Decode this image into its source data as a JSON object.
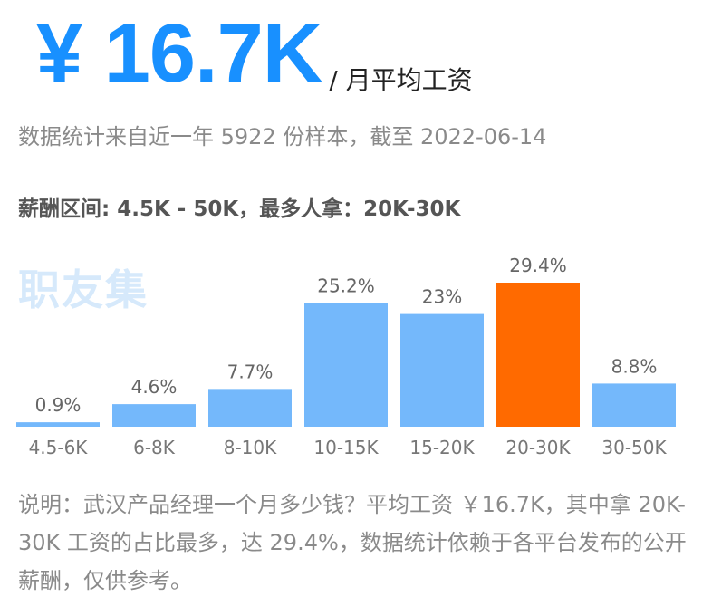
{
  "header": {
    "avg_salary": "¥ 16.7K",
    "unit": "/ 月平均工资",
    "subtitle": "数据统计来自近一年 5922 份样本，截至 2022-06-14",
    "salary_range": "薪酬区间: 4.5K - 50K，最多人拿：20K-30K"
  },
  "watermark": "职友集",
  "colors": {
    "accent": "#1890ff",
    "bar": "#74b8fb",
    "highlight": "#ff6a00"
  },
  "chart_data": {
    "type": "bar",
    "categories": [
      "4.5-6K",
      "6-8K",
      "8-10K",
      "10-15K",
      "15-20K",
      "20-30K",
      "30-50K"
    ],
    "values": [
      0.9,
      4.6,
      7.7,
      25.2,
      23,
      29.4,
      8.8
    ],
    "data_labels": [
      "0.9%",
      "4.6%",
      "7.7%",
      "25.2%",
      "23%",
      "29.4%",
      "8.8%"
    ],
    "highlight_category": "20-30K",
    "ylim": [
      0,
      29.4
    ],
    "grid": false,
    "title": "",
    "xlabel": "",
    "ylabel": ""
  },
  "note": "说明：武汉产品经理一个月多少钱？平均工资 ￥16.7K，其中拿 20K-30K 工资的占比最多，达 29.4%，数据统计依赖于各平台发布的公开薪酬，仅供参考。"
}
